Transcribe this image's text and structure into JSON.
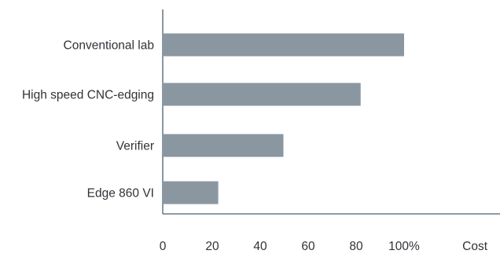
{
  "chart_data": {
    "type": "bar",
    "orientation": "horizontal",
    "categories": [
      "Conventional lab",
      "High speed CNC-edging",
      "Verifier",
      "Edge 860 VI"
    ],
    "values": [
      100,
      82,
      50,
      23
    ],
    "xlabel": "Cost",
    "xlim": [
      0,
      100
    ],
    "xticks": [
      "0",
      "20",
      "40",
      "60",
      "80",
      "100%"
    ],
    "grid": false,
    "legend": "none",
    "colors": {
      "bar": "#8a97a1",
      "axis": "#4a6171",
      "text": "#2f3337"
    }
  }
}
